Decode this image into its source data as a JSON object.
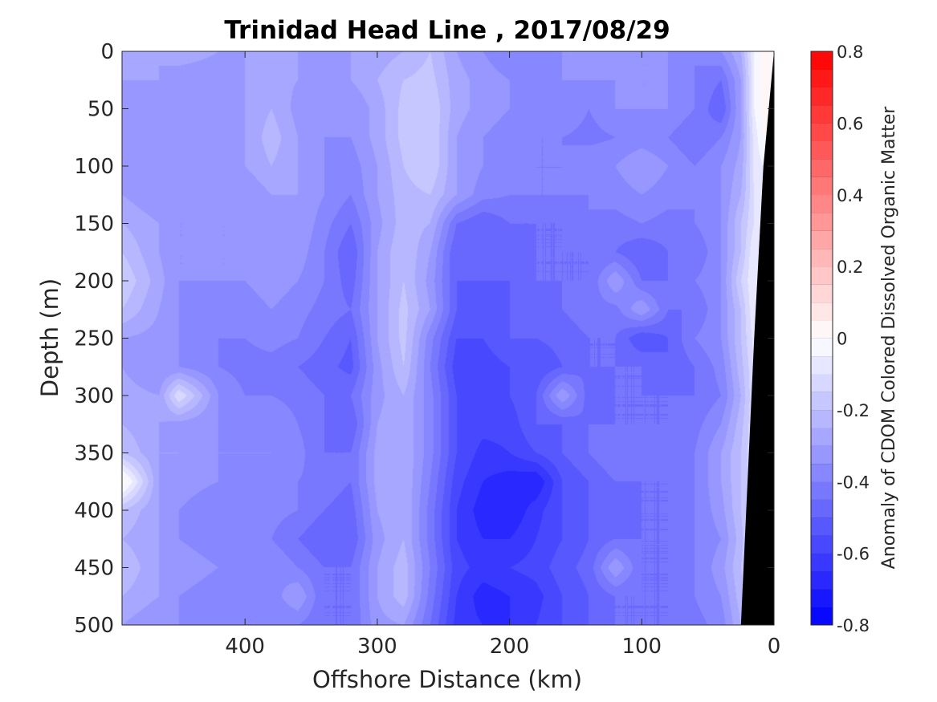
{
  "chart_data": {
    "type": "heatmap",
    "title": "Trinidad Head Line , 2017/08/29",
    "xlabel": "Offshore Distance (km)",
    "ylabel": "Depth (m)",
    "x_reversed": true,
    "y_reversed": true,
    "xlim": [
      0,
      493
    ],
    "ylim": [
      0,
      500
    ],
    "xticks": [
      400,
      300,
      200,
      100,
      0
    ],
    "xtick_labels": [
      "400",
      "300",
      "200",
      "100",
      "0"
    ],
    "yticks": [
      0,
      50,
      100,
      150,
      200,
      250,
      300,
      350,
      400,
      450,
      500
    ],
    "ytick_labels": [
      "0",
      "50",
      "100",
      "150",
      "200",
      "250",
      "300",
      "350",
      "400",
      "450",
      "500"
    ],
    "colorbar": {
      "label": "Anomaly of CDOM Colored Dissolved Organic Matter",
      "range": [
        -0.8,
        0.8
      ],
      "levels": 32,
      "ticks": [
        0.8,
        0.6,
        0.4,
        0.2,
        0,
        -0.2,
        -0.4,
        -0.6,
        -0.8
      ],
      "tick_labels": [
        "0.8",
        "0.6",
        "0.4",
        "0.2",
        "0",
        "-0.2",
        "-0.4",
        "-0.6",
        "-0.8"
      ],
      "low_color": "#0000ff",
      "mid_color": "#ffffff",
      "high_color": "#ff0000"
    },
    "bathymetry": {
      "color": "#000000",
      "points": [
        [
          0,
          0
        ],
        [
          8,
          100
        ],
        [
          15,
          250
        ],
        [
          19,
          350
        ],
        [
          25,
          500
        ]
      ]
    },
    "x_centers": [
      493,
      465,
      450,
      420,
      400,
      380,
      360,
      340,
      320,
      300,
      280,
      260,
      240,
      220,
      200,
      180,
      160,
      140,
      120,
      100,
      80,
      60,
      40,
      25,
      15,
      8
    ],
    "y_centers": [
      0,
      25,
      50,
      75,
      100,
      125,
      150,
      175,
      200,
      225,
      250,
      275,
      300,
      325,
      350,
      375,
      400,
      425,
      450,
      475,
      500
    ],
    "grid": [
      [
        -0.25,
        -0.3,
        -0.28,
        -0.3,
        -0.3,
        -0.3,
        -0.3,
        -0.3,
        -0.3,
        -0.28,
        -0.25,
        -0.2,
        -0.3,
        -0.35,
        -0.4,
        -0.4,
        -0.35,
        -0.35,
        -0.35,
        -0.35,
        -0.35,
        -0.4,
        -0.35,
        -0.25,
        -0.05,
        0.02
      ],
      [
        -0.3,
        -0.3,
        -0.32,
        -0.32,
        -0.3,
        -0.28,
        -0.3,
        -0.32,
        -0.3,
        -0.25,
        -0.2,
        -0.18,
        -0.28,
        -0.32,
        -0.35,
        -0.35,
        -0.35,
        -0.35,
        -0.35,
        -0.35,
        -0.35,
        -0.4,
        -0.45,
        -0.3,
        -0.05,
        0.03
      ],
      [
        -0.3,
        -0.32,
        -0.3,
        -0.32,
        -0.3,
        -0.25,
        -0.32,
        -0.33,
        -0.35,
        -0.28,
        -0.18,
        -0.15,
        -0.28,
        -0.32,
        -0.35,
        -0.38,
        -0.35,
        -0.4,
        -0.35,
        -0.35,
        -0.35,
        -0.4,
        -0.5,
        -0.3,
        -0.05,
        0.02
      ],
      [
        -0.3,
        -0.35,
        -0.3,
        -0.3,
        -0.3,
        -0.22,
        -0.3,
        -0.35,
        -0.35,
        -0.28,
        -0.18,
        -0.15,
        -0.3,
        -0.35,
        -0.38,
        -0.4,
        -0.4,
        -0.42,
        -0.4,
        -0.38,
        -0.4,
        -0.45,
        -0.4,
        -0.3,
        -0.08,
        0.0
      ],
      [
        -0.35,
        -0.35,
        -0.35,
        -0.32,
        -0.3,
        -0.25,
        -0.3,
        -0.35,
        -0.38,
        -0.3,
        -0.2,
        -0.15,
        -0.3,
        -0.35,
        -0.38,
        -0.4,
        -0.4,
        -0.35,
        -0.35,
        -0.3,
        -0.35,
        -0.4,
        -0.35,
        -0.28,
        -0.08,
        -0.05
      ],
      [
        -0.3,
        -0.35,
        -0.35,
        -0.35,
        -0.35,
        -0.3,
        -0.3,
        -0.35,
        -0.4,
        -0.3,
        -0.22,
        -0.2,
        -0.3,
        -0.38,
        -0.4,
        -0.4,
        -0.4,
        -0.4,
        -0.38,
        -0.35,
        -0.38,
        -0.4,
        -0.35,
        -0.25,
        -0.1,
        -0.05
      ],
      [
        -0.25,
        -0.3,
        -0.35,
        -0.35,
        -0.35,
        -0.32,
        -0.3,
        -0.38,
        -0.45,
        -0.32,
        -0.22,
        -0.25,
        -0.45,
        -0.5,
        -0.45,
        -0.45,
        -0.45,
        -0.4,
        -0.42,
        -0.4,
        -0.42,
        -0.4,
        -0.35,
        -0.2,
        -0.1,
        -0.05
      ],
      [
        -0.2,
        -0.3,
        -0.35,
        -0.35,
        -0.35,
        -0.3,
        -0.32,
        -0.4,
        -0.5,
        -0.3,
        -0.2,
        -0.3,
        -0.5,
        -0.5,
        -0.5,
        -0.45,
        -0.45,
        -0.45,
        -0.45,
        -0.5,
        -0.45,
        -0.45,
        -0.35,
        -0.2,
        -0.05,
        -0.05
      ],
      [
        -0.15,
        -0.28,
        -0.35,
        -0.35,
        -0.35,
        -0.32,
        -0.35,
        -0.4,
        -0.48,
        -0.3,
        -0.2,
        -0.32,
        -0.5,
        -0.5,
        -0.5,
        -0.45,
        -0.45,
        -0.45,
        -0.3,
        -0.45,
        -0.45,
        -0.4,
        -0.35,
        -0.15,
        -0.05,
        -0.1
      ],
      [
        -0.2,
        -0.3,
        -0.35,
        -0.38,
        -0.38,
        -0.35,
        -0.38,
        -0.42,
        -0.45,
        -0.3,
        -0.18,
        -0.3,
        -0.5,
        -0.52,
        -0.5,
        -0.5,
        -0.45,
        -0.42,
        -0.42,
        -0.3,
        -0.45,
        -0.45,
        -0.35,
        -0.2,
        -0.05,
        -0.1
      ],
      [
        -0.3,
        -0.32,
        -0.35,
        -0.4,
        -0.4,
        -0.38,
        -0.4,
        -0.45,
        -0.5,
        -0.3,
        -0.18,
        -0.38,
        -0.55,
        -0.55,
        -0.5,
        -0.5,
        -0.48,
        -0.45,
        -0.45,
        -0.55,
        -0.5,
        -0.4,
        -0.35,
        -0.2,
        -0.08,
        -0.1
      ],
      [
        -0.3,
        -0.35,
        -0.35,
        -0.4,
        -0.42,
        -0.42,
        -0.45,
        -0.48,
        -0.52,
        -0.32,
        -0.2,
        -0.4,
        -0.58,
        -0.58,
        -0.55,
        -0.55,
        -0.5,
        -0.45,
        -0.45,
        -0.45,
        -0.5,
        -0.45,
        -0.38,
        -0.22,
        -0.1,
        -0.1
      ],
      [
        -0.28,
        -0.3,
        -0.1,
        -0.35,
        -0.4,
        -0.4,
        -0.42,
        -0.45,
        -0.45,
        -0.32,
        -0.25,
        -0.38,
        -0.55,
        -0.58,
        -0.55,
        -0.5,
        -0.3,
        -0.48,
        -0.45,
        -0.45,
        -0.45,
        -0.45,
        -0.4,
        -0.25,
        -0.1,
        -0.1
      ],
      [
        -0.25,
        -0.3,
        -0.32,
        -0.35,
        -0.38,
        -0.35,
        -0.4,
        -0.45,
        -0.5,
        -0.3,
        -0.25,
        -0.38,
        -0.55,
        -0.58,
        -0.58,
        -0.5,
        -0.5,
        -0.45,
        -0.45,
        -0.45,
        -0.45,
        -0.42,
        -0.35,
        -0.22,
        -0.1,
        -0.1
      ],
      [
        -0.2,
        -0.3,
        -0.3,
        -0.35,
        -0.35,
        -0.35,
        -0.38,
        -0.45,
        -0.45,
        -0.28,
        -0.25,
        -0.38,
        -0.55,
        -0.62,
        -0.6,
        -0.55,
        -0.5,
        -0.45,
        -0.4,
        -0.45,
        -0.42,
        -0.4,
        -0.3,
        -0.2,
        -0.1,
        -0.1
      ],
      [
        0.05,
        -0.3,
        -0.32,
        -0.35,
        -0.38,
        -0.35,
        -0.4,
        -0.42,
        -0.45,
        -0.28,
        -0.25,
        -0.4,
        -0.58,
        -0.65,
        -0.68,
        -0.7,
        -0.55,
        -0.5,
        -0.45,
        -0.45,
        -0.45,
        -0.4,
        -0.3,
        -0.2,
        -0.1,
        -0.1
      ],
      [
        -0.2,
        -0.3,
        -0.35,
        -0.4,
        -0.4,
        -0.38,
        -0.4,
        -0.45,
        -0.48,
        -0.3,
        -0.25,
        -0.42,
        -0.6,
        -0.68,
        -0.7,
        -0.62,
        -0.55,
        -0.5,
        -0.48,
        -0.45,
        -0.45,
        -0.4,
        -0.32,
        -0.2,
        -0.1,
        -0.1
      ],
      [
        -0.25,
        -0.3,
        -0.35,
        -0.38,
        -0.4,
        -0.4,
        -0.45,
        -0.5,
        -0.5,
        -0.32,
        -0.25,
        -0.42,
        -0.6,
        -0.65,
        -0.65,
        -0.6,
        -0.55,
        -0.5,
        -0.45,
        -0.45,
        -0.45,
        -0.4,
        -0.35,
        -0.22,
        -0.1,
        -0.1
      ],
      [
        -0.2,
        -0.3,
        -0.32,
        -0.35,
        -0.38,
        -0.35,
        -0.4,
        -0.45,
        -0.45,
        -0.3,
        -0.22,
        -0.4,
        -0.58,
        -0.62,
        -0.6,
        -0.58,
        -0.52,
        -0.48,
        -0.3,
        -0.45,
        -0.45,
        -0.4,
        -0.32,
        -0.2,
        -0.1,
        -0.1
      ],
      [
        -0.25,
        -0.3,
        -0.35,
        -0.38,
        -0.4,
        -0.38,
        -0.3,
        -0.45,
        -0.45,
        -0.3,
        -0.22,
        -0.42,
        -0.6,
        -0.68,
        -0.65,
        -0.62,
        -0.55,
        -0.5,
        -0.45,
        -0.45,
        -0.45,
        -0.4,
        -0.35,
        -0.22,
        -0.1,
        -0.1
      ],
      [
        -0.3,
        -0.35,
        -0.35,
        -0.38,
        -0.4,
        -0.4,
        -0.4,
        -0.45,
        -0.45,
        -0.32,
        -0.3,
        -0.45,
        -0.62,
        -0.65,
        -0.65,
        -0.6,
        -0.55,
        -0.5,
        -0.45,
        -0.45,
        -0.45,
        -0.42,
        -0.38,
        -0.25,
        -0.1,
        -0.1
      ]
    ]
  }
}
